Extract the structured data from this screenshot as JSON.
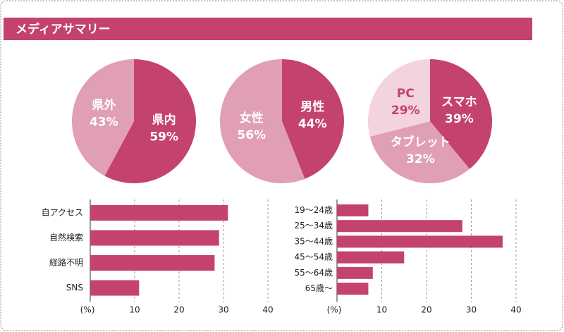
{
  "header": {
    "title": "メディアサマリー"
  },
  "chart_data": [
    {
      "type": "pie",
      "categories": [
        "県内",
        "県外"
      ],
      "values": [
        59,
        43
      ],
      "value_labels": [
        "59%",
        "43%"
      ],
      "colors": [
        "#c4426f",
        "#e09fb4"
      ]
    },
    {
      "type": "pie",
      "categories": [
        "男性",
        "女性"
      ],
      "values": [
        44,
        56
      ],
      "value_labels": [
        "44%",
        "56%"
      ],
      "colors": [
        "#c4426f",
        "#e09fb4"
      ]
    },
    {
      "type": "pie",
      "categories": [
        "スマホ",
        "タブレット",
        "PC"
      ],
      "values": [
        39,
        32,
        29
      ],
      "value_labels": [
        "39%",
        "32%",
        "29%"
      ],
      "colors": [
        "#c4426f",
        "#e09fb4",
        "#f2d3de"
      ]
    },
    {
      "type": "bar",
      "categories": [
        "自アクセス",
        "自然検索",
        "経路不明",
        "SNS"
      ],
      "values": [
        31,
        29,
        28,
        11
      ],
      "color": "#c4426f",
      "xlim": [
        0,
        40
      ],
      "xticks": [
        10,
        20,
        30,
        40
      ],
      "x_label": "(%)",
      "grid": true
    },
    {
      "type": "bar",
      "categories": [
        "19〜24歳",
        "25〜34歳",
        "35〜44歳",
        "45〜54歳",
        "55〜64歳",
        "65歳〜"
      ],
      "values": [
        7,
        28,
        37,
        15,
        8,
        7
      ],
      "color": "#c4426f",
      "xlim": [
        0,
        40
      ],
      "xticks": [
        10,
        20,
        30,
        40
      ],
      "x_label": "(%)",
      "grid": true
    }
  ]
}
